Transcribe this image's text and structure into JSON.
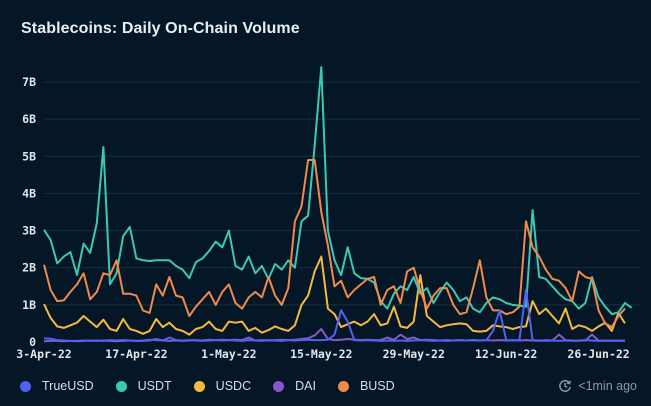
{
  "header": {
    "title": "Stablecoins: Daily On-Chain Volume"
  },
  "footer": {
    "updated_label": "<1min ago",
    "updated_icon": "clock-refresh-icon"
  },
  "colors": {
    "background": "#051726",
    "grid": "#13323f",
    "TrueUSD": "#4f62f2",
    "USDT": "#3cc8b4",
    "USDC": "#f5b93f",
    "DAI": "#8a56c9",
    "BUSD": "#f08a4b"
  },
  "chart_data": {
    "type": "line",
    "title": "Stablecoins: Daily On-Chain Volume",
    "xlabel": "",
    "ylabel": "",
    "ylim": [
      0,
      7400000000
    ],
    "yticks": [
      0,
      1000000000,
      2000000000,
      3000000000,
      4000000000,
      5000000000,
      6000000000,
      7000000000
    ],
    "ytick_labels": [
      "0",
      "1B",
      "2B",
      "3B",
      "4B",
      "5B",
      "6B",
      "7B"
    ],
    "x_start": "2022-04-03",
    "x_end": "2022-06-30",
    "xtick_labels": [
      "3-Apr-22",
      "17-Apr-22",
      "1-May-22",
      "15-May-22",
      "29-May-22",
      "12-Jun-22",
      "26-Jun-22"
    ],
    "xtick_day_index": [
      0,
      14,
      28,
      42,
      56,
      70,
      84
    ],
    "grid": true,
    "legend_position": "bottom-left",
    "unit": "USD",
    "series": [
      {
        "name": "TrueUSD",
        "values": [
          0.1,
          0.09,
          0.05,
          0.04,
          0.03,
          0.03,
          0.04,
          0.03,
          0.04,
          0.03,
          0.05,
          0.04,
          0.05,
          0.04,
          0.03,
          0.04,
          0.06,
          0.05,
          0.04,
          0.12,
          0.05,
          0.04,
          0.05,
          0.04,
          0.03,
          0.04,
          0.05,
          0.04,
          0.05,
          0.04,
          0.03,
          0.05,
          0.04,
          0.03,
          0.05,
          0.04,
          0.03,
          0.05,
          0.04,
          0.05,
          0.06,
          0.05,
          0.05,
          0.06,
          0.2,
          0.85,
          0.55,
          0.05,
          0.04,
          0.05,
          0.04,
          0.03,
          0.04,
          0.03,
          0.04,
          0.03,
          0.04,
          0.05,
          0.04,
          0.03,
          0.04,
          0.03,
          0.04,
          0.05,
          0.04,
          0.05,
          0.04,
          0.05,
          0.3,
          0.85,
          0.05,
          0.04,
          0.05,
          1.4,
          0.05,
          0.04,
          0.03,
          0.04,
          0.03,
          0.04,
          0.03,
          0.04,
          0.05,
          0.04,
          0.03,
          0.04,
          0.03,
          0.04,
          0.03
        ]
      },
      {
        "name": "USDT",
        "values": [
          3.02,
          2.75,
          2.12,
          2.3,
          2.42,
          1.8,
          2.65,
          2.4,
          3.2,
          5.25,
          1.55,
          1.85,
          2.85,
          3.1,
          2.25,
          2.2,
          2.18,
          2.2,
          2.2,
          2.2,
          2.05,
          1.95,
          1.72,
          2.15,
          2.25,
          2.45,
          2.7,
          2.55,
          3.0,
          2.05,
          1.95,
          2.3,
          1.85,
          2.05,
          1.7,
          2.1,
          1.95,
          2.2,
          2.0,
          3.25,
          3.4,
          5.3,
          7.4,
          3.0,
          2.2,
          1.8,
          2.55,
          1.85,
          1.72,
          1.7,
          1.6,
          1.1,
          0.9,
          1.3,
          1.5,
          1.4,
          1.75,
          1.3,
          1.45,
          1.05,
          1.35,
          1.6,
          1.4,
          1.1,
          1.2,
          0.9,
          0.8,
          1.05,
          1.2,
          1.15,
          1.05,
          1.0,
          0.98,
          0.95,
          3.55,
          1.75,
          1.7,
          1.5,
          1.3,
          1.15,
          1.1,
          0.9,
          1.05,
          1.75,
          1.2,
          0.95,
          0.75,
          0.8,
          1.05,
          0.92
        ]
      },
      {
        "name": "USDC",
        "values": [
          1.02,
          0.65,
          0.42,
          0.38,
          0.45,
          0.52,
          0.7,
          0.55,
          0.4,
          0.6,
          0.35,
          0.3,
          0.62,
          0.35,
          0.3,
          0.22,
          0.3,
          0.62,
          0.4,
          0.52,
          0.35,
          0.3,
          0.2,
          0.35,
          0.4,
          0.55,
          0.35,
          0.3,
          0.55,
          0.52,
          0.55,
          0.3,
          0.38,
          0.25,
          0.32,
          0.42,
          0.35,
          0.3,
          0.45,
          1.0,
          1.25,
          1.9,
          2.3,
          0.9,
          0.75,
          0.4,
          0.48,
          0.55,
          0.45,
          0.55,
          0.75,
          0.45,
          0.5,
          0.95,
          0.42,
          0.38,
          0.55,
          1.8,
          0.7,
          0.55,
          0.4,
          0.45,
          0.48,
          0.5,
          0.48,
          0.3,
          0.28,
          0.3,
          0.45,
          0.42,
          0.4,
          0.35,
          0.4,
          0.42,
          1.1,
          0.75,
          0.9,
          0.7,
          0.5,
          0.9,
          0.35,
          0.45,
          0.4,
          0.3,
          0.42,
          0.52,
          0.3,
          0.78,
          0.5
        ]
      },
      {
        "name": "DAI",
        "values": [
          0.02,
          0.03,
          0.03,
          0.02,
          0.03,
          0.02,
          0.03,
          0.04,
          0.03,
          0.04,
          0.03,
          0.02,
          0.03,
          0.04,
          0.03,
          0.03,
          0.04,
          0.08,
          0.04,
          0.03,
          0.04,
          0.03,
          0.04,
          0.05,
          0.04,
          0.06,
          0.05,
          0.06,
          0.05,
          0.06,
          0.05,
          0.12,
          0.04,
          0.05,
          0.04,
          0.05,
          0.06,
          0.05,
          0.06,
          0.08,
          0.1,
          0.18,
          0.35,
          0.08,
          0.05,
          0.06,
          0.08,
          0.06,
          0.05,
          0.06,
          0.05,
          0.05,
          0.12,
          0.06,
          0.2,
          0.08,
          0.12,
          0.05,
          0.06,
          0.05,
          0.04,
          0.05,
          0.04,
          0.05,
          0.04,
          0.05,
          0.04,
          0.05,
          0.04,
          0.05,
          0.04,
          0.05,
          0.04,
          0.05,
          0.04,
          0.03,
          0.05,
          0.04,
          0.2,
          0.05,
          0.04,
          0.03,
          0.04,
          0.2,
          0.04,
          0.03,
          0.04,
          0.03,
          0.04
        ]
      },
      {
        "name": "BUSD",
        "values": [
          2.08,
          1.4,
          1.1,
          1.12,
          1.35,
          1.55,
          1.85,
          1.15,
          1.35,
          1.85,
          1.8,
          2.2,
          1.3,
          1.3,
          1.25,
          0.85,
          0.78,
          1.55,
          1.25,
          1.75,
          1.25,
          1.2,
          0.7,
          0.95,
          1.15,
          1.35,
          1.0,
          1.35,
          1.55,
          1.05,
          0.9,
          1.2,
          1.35,
          1.2,
          1.75,
          1.25,
          1.0,
          1.45,
          3.25,
          3.65,
          4.9,
          4.9,
          3.5,
          2.6,
          1.5,
          1.65,
          1.2,
          1.4,
          1.55,
          1.7,
          1.75,
          1.0,
          1.4,
          1.5,
          1.05,
          1.9,
          2.0,
          1.4,
          0.9,
          1.25,
          1.45,
          1.45,
          1.0,
          0.75,
          0.8,
          1.45,
          2.2,
          1.2,
          0.85,
          0.85,
          0.75,
          0.8,
          0.95,
          3.25,
          2.55,
          2.3,
          1.95,
          1.7,
          1.65,
          1.45,
          1.1,
          1.9,
          1.75,
          1.7,
          0.85,
          0.5,
          0.4,
          0.7,
          0.9
        ]
      }
    ]
  },
  "legend": {
    "items": [
      {
        "label": "TrueUSD",
        "color": "#4f62f2"
      },
      {
        "label": "USDT",
        "color": "#3cc8b4"
      },
      {
        "label": "USDC",
        "color": "#f5b93f"
      },
      {
        "label": "DAI",
        "color": "#8a56c9"
      },
      {
        "label": "BUSD",
        "color": "#f08a4b"
      }
    ]
  }
}
